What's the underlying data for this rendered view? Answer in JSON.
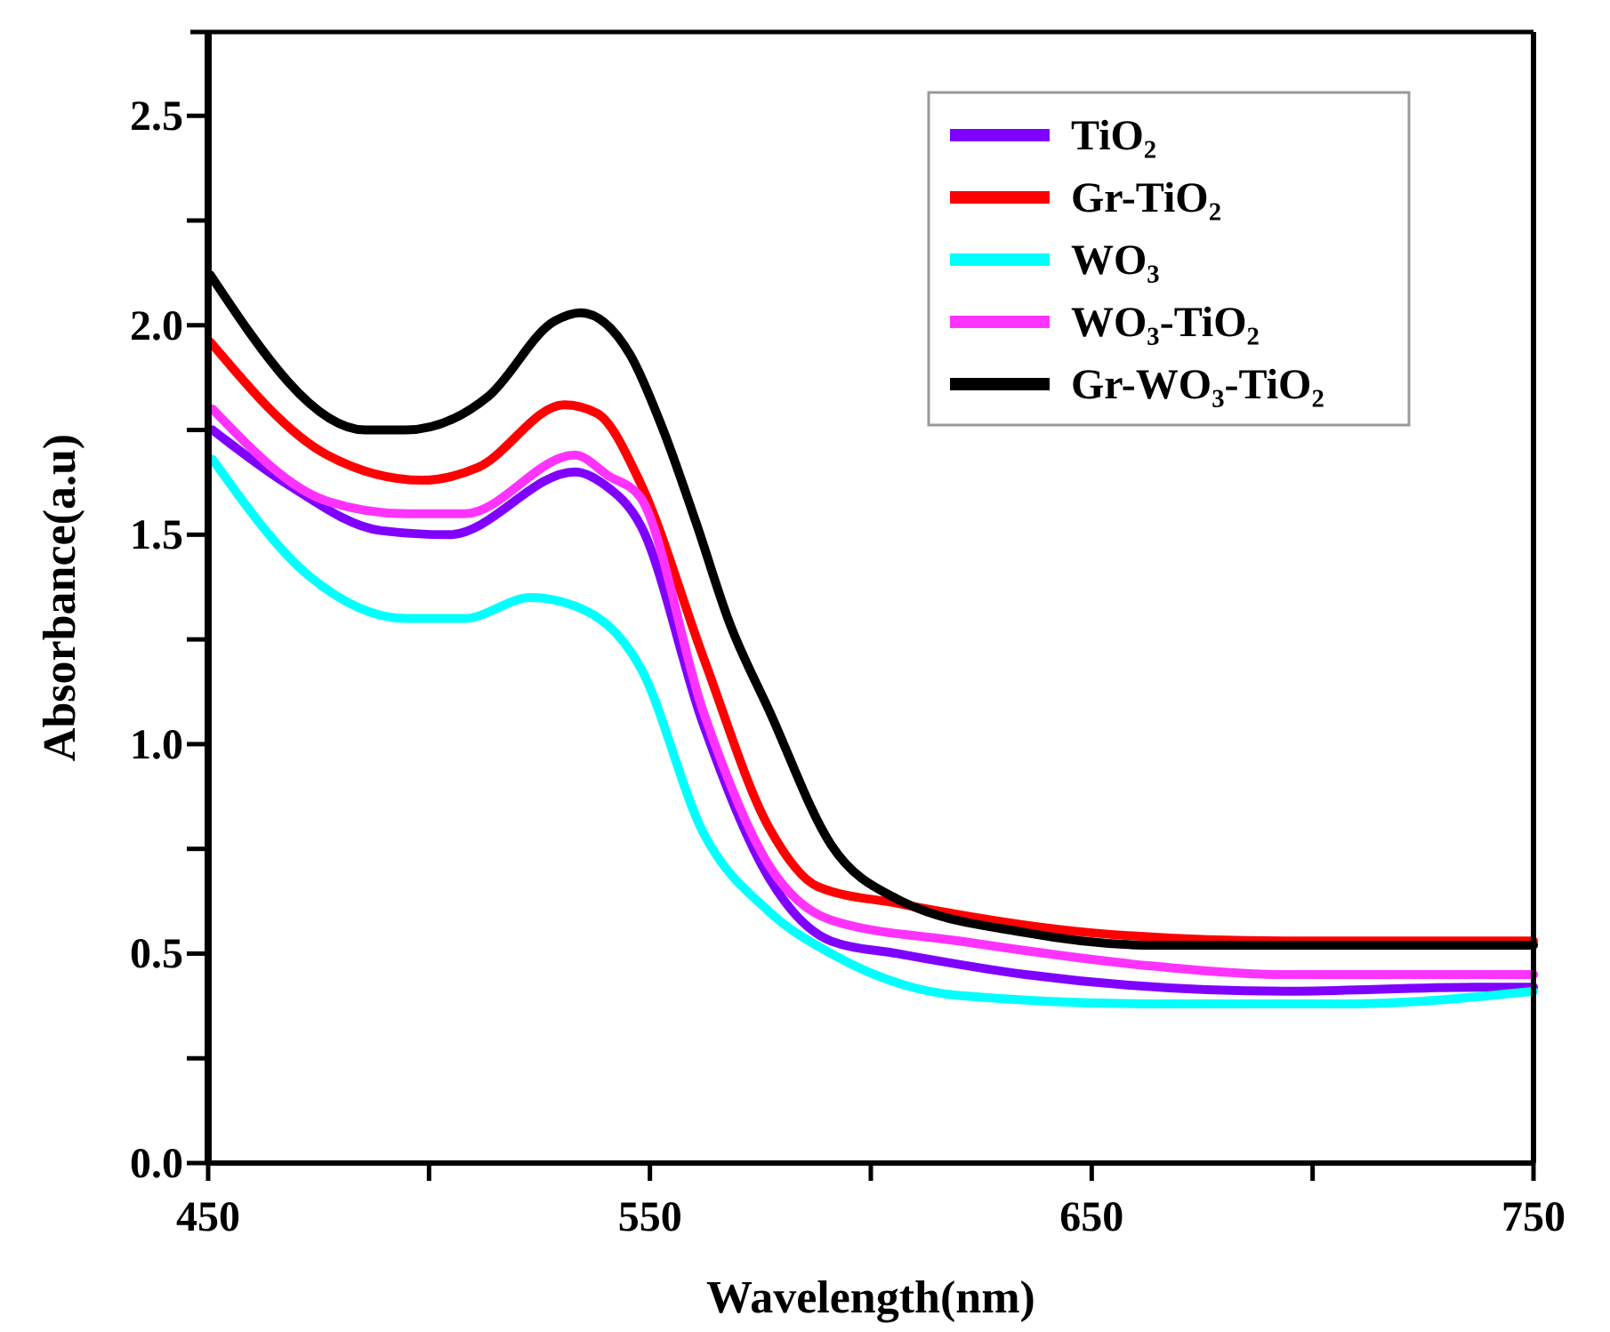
{
  "chart_data": {
    "type": "line",
    "xlabel": "Wavelength(nm)",
    "ylabel": "Absorbance(a.u)",
    "xlim": [
      450,
      750
    ],
    "ylim": [
      0,
      2.7
    ],
    "xticks": [
      450,
      {
        "value": 500,
        "label": null
      },
      550,
      {
        "value": 600,
        "label": null
      },
      650,
      {
        "value": 700,
        "label": null
      },
      750
    ],
    "yticks": [
      {
        "value": 0,
        "label": "0.0"
      },
      {
        "value": 0.25,
        "label": null
      },
      0.5,
      {
        "value": 0.75,
        "label": null
      },
      {
        "value": 1,
        "label": "1.0"
      },
      {
        "value": 1.25,
        "label": null
      },
      1.5,
      {
        "value": 1.75,
        "label": null
      },
      {
        "value": 2,
        "label": "2.0"
      },
      {
        "value": 2.25,
        "label": null
      },
      2.5
    ],
    "grid": false,
    "legend": "top right",
    "marker": "none",
    "line_style": "solid",
    "series": [
      {
        "name": "TiO₂",
        "color": "#8000ff",
        "x": [
          451,
          468,
          489,
          504.5,
          533,
          539.6,
          548,
          562,
          577,
          591,
          606,
          635,
          693.7,
          737,
          750
        ],
        "values": [
          1.75,
          1.62,
          1.51,
          1.5,
          1.65,
          1.62,
          1.52,
          1.05,
          0.68,
          0.53,
          0.5,
          0.45,
          0.41,
          0.42,
          0.42
        ]
      },
      {
        "name": "Gr-TiO₂",
        "color": "#ff0000",
        "x": [
          450.5,
          477,
          498.5,
          511,
          530.6,
          538,
          548,
          562,
          577,
          588,
          606,
          649.6,
          693.7,
          750
        ],
        "values": [
          1.96,
          1.69,
          1.63,
          1.66,
          1.81,
          1.79,
          1.62,
          1.21,
          0.8,
          0.66,
          0.62,
          0.55,
          0.53,
          0.53
        ]
      },
      {
        "name": "WO₃",
        "color": "#00ffff",
        "x": [
          451,
          473,
          494.7,
          508,
          523,
          533,
          548,
          562,
          577,
          591,
          620,
          664,
          708,
          750
        ],
        "values": [
          1.68,
          1.4,
          1.3,
          1.3,
          1.35,
          1.33,
          1.18,
          0.79,
          0.6,
          0.5,
          0.4,
          0.38,
          0.38,
          0.41
        ]
      },
      {
        "name": "WO₃-TiO₂",
        "color": "#ff33ff",
        "x": [
          451,
          477,
          495,
          508,
          533,
          540.7,
          547.8,
          562,
          577,
          591,
          620,
          664,
          693,
          750
        ],
        "values": [
          1.8,
          1.58,
          1.55,
          1.55,
          1.69,
          1.64,
          1.59,
          1.08,
          0.71,
          0.58,
          0.53,
          0.47,
          0.45,
          0.45
        ]
      },
      {
        "name": "Gr-WO₃-TiO₂",
        "color": "#000000",
        "x": [
          450.5,
          485.6,
          494.7,
          513.4,
          528.4,
          534.3,
          545.5,
          553,
          560.4,
          568,
          577,
          591,
          606,
          635,
          664,
          750
        ],
        "values": [
          2.12,
          1.75,
          1.75,
          1.83,
          2.01,
          2.03,
          1.93,
          1.75,
          1.53,
          1.29,
          1.08,
          0.76,
          0.63,
          0.55,
          0.52,
          0.52
        ]
      }
    ]
  }
}
